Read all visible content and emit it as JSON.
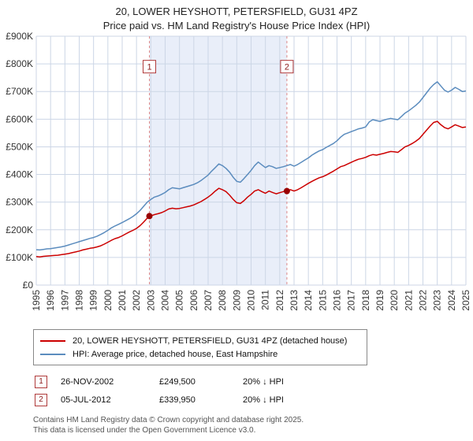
{
  "header": {
    "title": "20, LOWER HEYSHOTT, PETERSFIELD, GU31 4PZ",
    "subtitle": "Price paid vs. HM Land Registry's House Price Index (HPI)"
  },
  "chart_data": {
    "type": "line",
    "x": {
      "start": 1995,
      "step": 0.25,
      "count": 121
    },
    "ylim": [
      0,
      900000
    ],
    "yticks": [
      {
        "value": 0,
        "label": "£0"
      },
      {
        "value": 100000,
        "label": "£100K"
      },
      {
        "value": 200000,
        "label": "£200K"
      },
      {
        "value": 300000,
        "label": "£300K"
      },
      {
        "value": 400000,
        "label": "£400K"
      },
      {
        "value": 500000,
        "label": "£500K"
      },
      {
        "value": 600000,
        "label": "£600K"
      },
      {
        "value": 700000,
        "label": "£700K"
      },
      {
        "value": 800000,
        "label": "£800K"
      },
      {
        "value": 900000,
        "label": "£900K"
      }
    ],
    "xticks": [
      1995,
      1996,
      1997,
      1998,
      1999,
      2000,
      2001,
      2002,
      2003,
      2004,
      2005,
      2006,
      2007,
      2008,
      2009,
      2010,
      2011,
      2012,
      2013,
      2014,
      2015,
      2016,
      2017,
      2018,
      2019,
      2020,
      2021,
      2022,
      2023,
      2024,
      2025
    ],
    "series": [
      {
        "name": "20, LOWER HEYSHOTT, PETERSFIELD, GU31 4PZ (detached house)",
        "color": "#cc0000",
        "values": [
          103000,
          102000,
          104000,
          105000,
          106000,
          107000,
          108000,
          110000,
          112000,
          114000,
          117000,
          120000,
          123000,
          127000,
          130000,
          133000,
          135000,
          138000,
          142000,
          148000,
          155000,
          162000,
          168000,
          172000,
          178000,
          185000,
          192000,
          198000,
          205000,
          215000,
          228000,
          242000,
          250000,
          255000,
          258000,
          262000,
          268000,
          275000,
          278000,
          276000,
          277000,
          280000,
          283000,
          286000,
          290000,
          296000,
          302000,
          310000,
          318000,
          328000,
          340000,
          350000,
          345000,
          338000,
          325000,
          310000,
          298000,
          295000,
          305000,
          318000,
          328000,
          340000,
          345000,
          338000,
          332000,
          340000,
          335000,
          330000,
          334000,
          338000,
          342000,
          345000,
          340000,
          345000,
          352000,
          360000,
          368000,
          375000,
          382000,
          388000,
          392000,
          398000,
          405000,
          412000,
          420000,
          428000,
          432000,
          438000,
          444000,
          450000,
          455000,
          458000,
          462000,
          468000,
          472000,
          470000,
          473000,
          476000,
          480000,
          483000,
          482000,
          480000,
          490000,
          500000,
          505000,
          512000,
          520000,
          530000,
          545000,
          560000,
          575000,
          588000,
          592000,
          580000,
          570000,
          565000,
          572000,
          580000,
          575000,
          570000,
          572000
        ]
      },
      {
        "name": "HPI: Average price, detached house, East Hampshire",
        "color": "#5b8cbe",
        "values": [
          128000,
          127000,
          129000,
          131000,
          132000,
          134000,
          136000,
          138000,
          141000,
          145000,
          149000,
          153000,
          157000,
          161000,
          165000,
          169000,
          172000,
          177000,
          183000,
          190000,
          198000,
          207000,
          214000,
          220000,
          226000,
          233000,
          240000,
          248000,
          258000,
          270000,
          285000,
          300000,
          310000,
          318000,
          322000,
          328000,
          335000,
          345000,
          352000,
          350000,
          348000,
          352000,
          356000,
          360000,
          364000,
          370000,
          378000,
          388000,
          398000,
          412000,
          425000,
          438000,
          432000,
          422000,
          408000,
          390000,
          375000,
          372000,
          385000,
          400000,
          415000,
          432000,
          445000,
          435000,
          425000,
          432000,
          428000,
          422000,
          425000,
          428000,
          432000,
          436000,
          430000,
          436000,
          444000,
          452000,
          460000,
          470000,
          478000,
          485000,
          490000,
          498000,
          505000,
          512000,
          522000,
          535000,
          545000,
          550000,
          555000,
          560000,
          565000,
          568000,
          572000,
          590000,
          598000,
          595000,
          592000,
          596000,
          600000,
          603000,
          600000,
          598000,
          610000,
          622000,
          630000,
          640000,
          650000,
          662000,
          678000,
          695000,
          712000,
          725000,
          735000,
          720000,
          705000,
          698000,
          705000,
          715000,
          708000,
          700000,
          702000
        ]
      }
    ],
    "markers": [
      {
        "label": "1",
        "x": 2002.9,
        "y": 249500
      },
      {
        "label": "2",
        "x": 2012.5,
        "y": 339950
      }
    ],
    "shaded_region": [
      2002.9,
      2012.5
    ],
    "marker_box_value": 790000,
    "colors": {
      "grid": "#ccd6e6",
      "shade": "#e9eef9",
      "sale_line": "#dd8888",
      "sale_dot": "#990000",
      "box_border": "#b03a3a",
      "box_text": "#8b1a1a",
      "axis_text": "#333333"
    },
    "legend_position": "bottom",
    "grid": true
  },
  "legend": [
    {
      "label": "20, LOWER HEYSHOTT, PETERSFIELD, GU31 4PZ (detached house)"
    },
    {
      "label": "HPI: Average price, detached house, East Hampshire"
    }
  ],
  "annotations": [
    {
      "num": "1",
      "date": "26-NOV-2002",
      "price": "£249,500",
      "hpi": "20% ↓ HPI"
    },
    {
      "num": "2",
      "date": "05-JUL-2012",
      "price": "£339,950",
      "hpi": "20% ↓ HPI"
    }
  ],
  "footer": {
    "line1": "Contains HM Land Registry data © Crown copyright and database right 2025.",
    "line2": "This data is licensed under the Open Government Licence v3.0."
  }
}
